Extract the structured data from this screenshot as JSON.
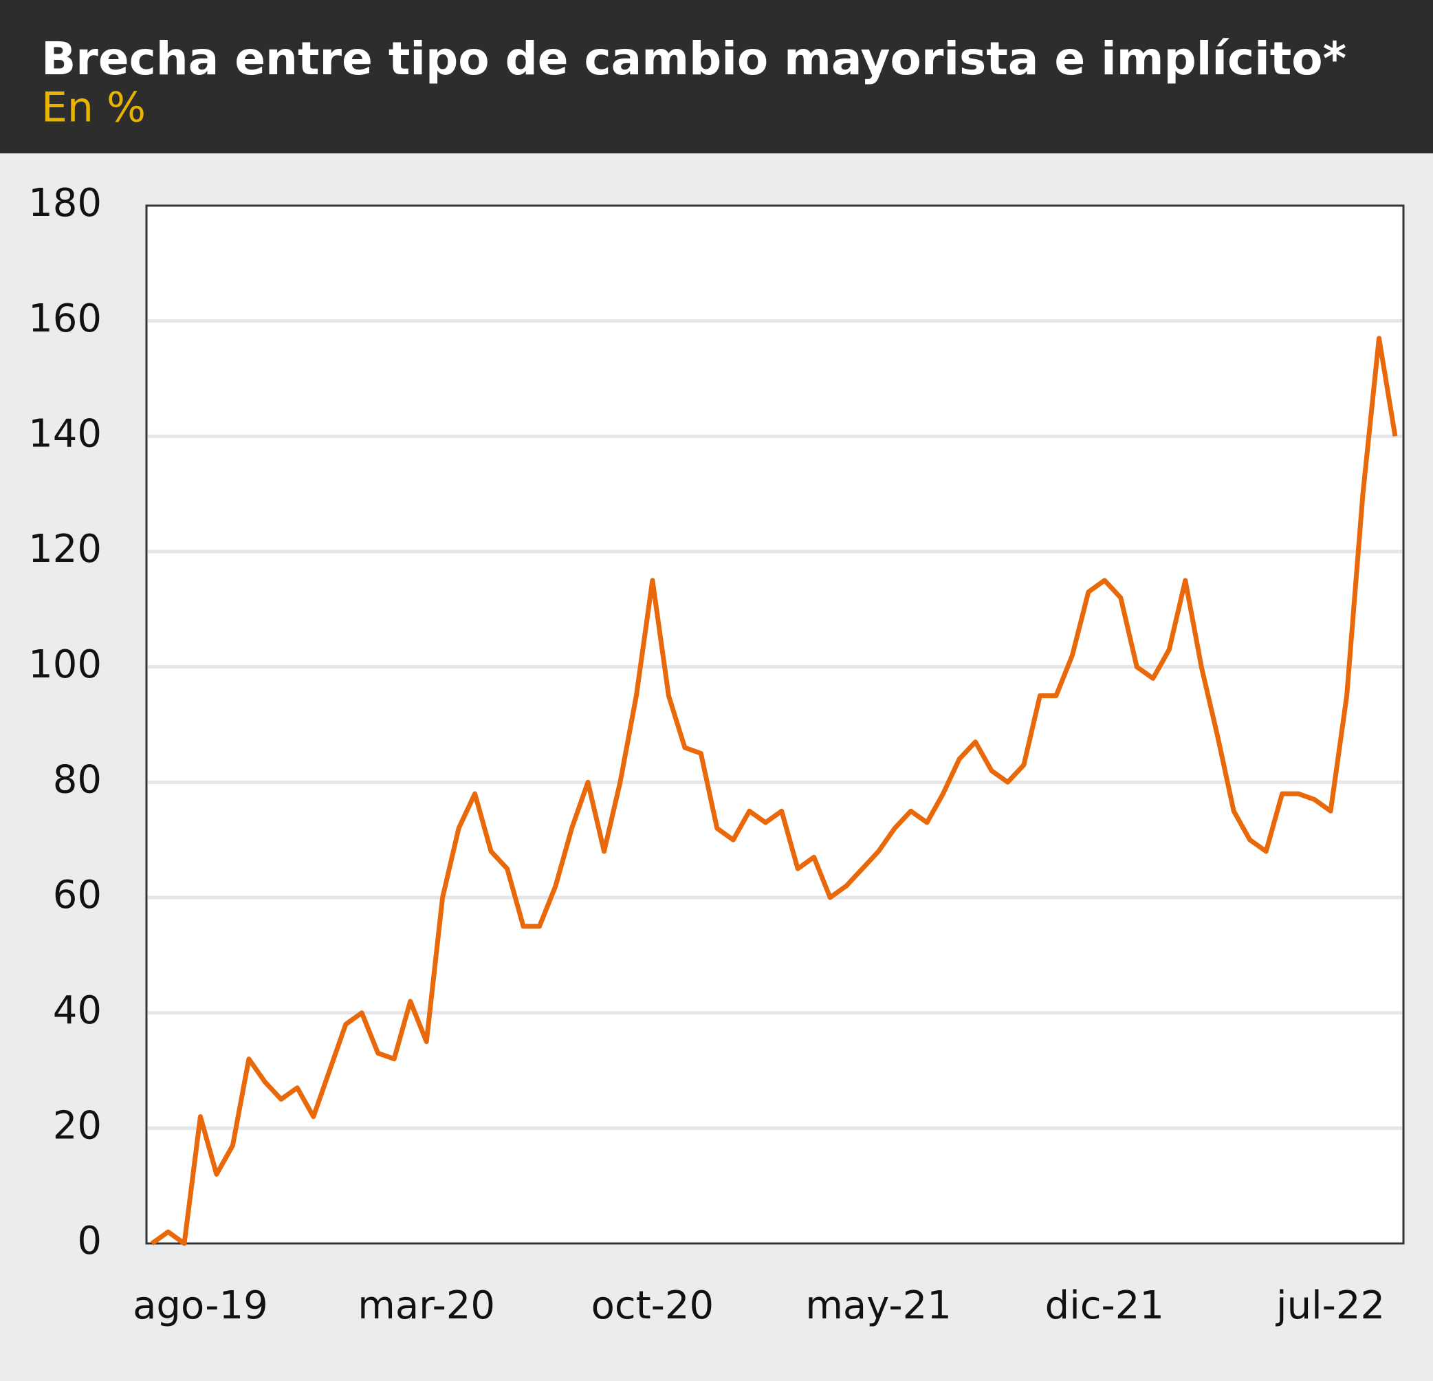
{
  "chart_data": {
    "type": "line",
    "title": "Brecha entre tipo de cambio mayorista e implícito*",
    "subtitle": "En %",
    "categories": [
      null,
      null,
      null,
      "ago-19",
      null,
      null,
      null,
      null,
      null,
      null,
      null,
      null,
      null,
      null,
      null,
      null,
      null,
      "mar-20",
      null,
      null,
      null,
      null,
      null,
      null,
      null,
      null,
      null,
      null,
      null,
      null,
      null,
      "oct-20",
      null,
      null,
      null,
      null,
      null,
      null,
      null,
      null,
      null,
      null,
      null,
      null,
      null,
      "may-21",
      null,
      null,
      null,
      null,
      null,
      null,
      null,
      null,
      null,
      null,
      null,
      null,
      null,
      "dic-21",
      null,
      null,
      null,
      null,
      null,
      null,
      null,
      null,
      null,
      null,
      null,
      null,
      null,
      "jul-22",
      null,
      null,
      null,
      null
    ],
    "series": [
      {
        "name": "Brecha",
        "color": "#e8680a",
        "values": [
          0,
          2,
          0,
          22,
          12,
          17,
          32,
          28,
          25,
          27,
          22,
          30,
          38,
          40,
          33,
          32,
          42,
          35,
          60,
          72,
          78,
          68,
          65,
          55,
          55,
          62,
          72,
          80,
          68,
          80,
          95,
          115,
          95,
          86,
          85,
          72,
          70,
          75,
          73,
          75,
          65,
          67,
          60,
          62,
          65,
          68,
          72,
          75,
          73,
          78,
          84,
          87,
          82,
          80,
          83,
          95,
          95,
          102,
          113,
          115,
          112,
          100,
          98,
          103,
          115,
          100,
          88,
          75,
          70,
          68,
          78,
          78,
          77,
          75,
          95,
          130,
          157,
          140
        ]
      }
    ],
    "ylim": [
      0,
      180
    ],
    "yticks": [
      0,
      20,
      40,
      60,
      80,
      100,
      120,
      140,
      160,
      180
    ],
    "grid": true
  }
}
